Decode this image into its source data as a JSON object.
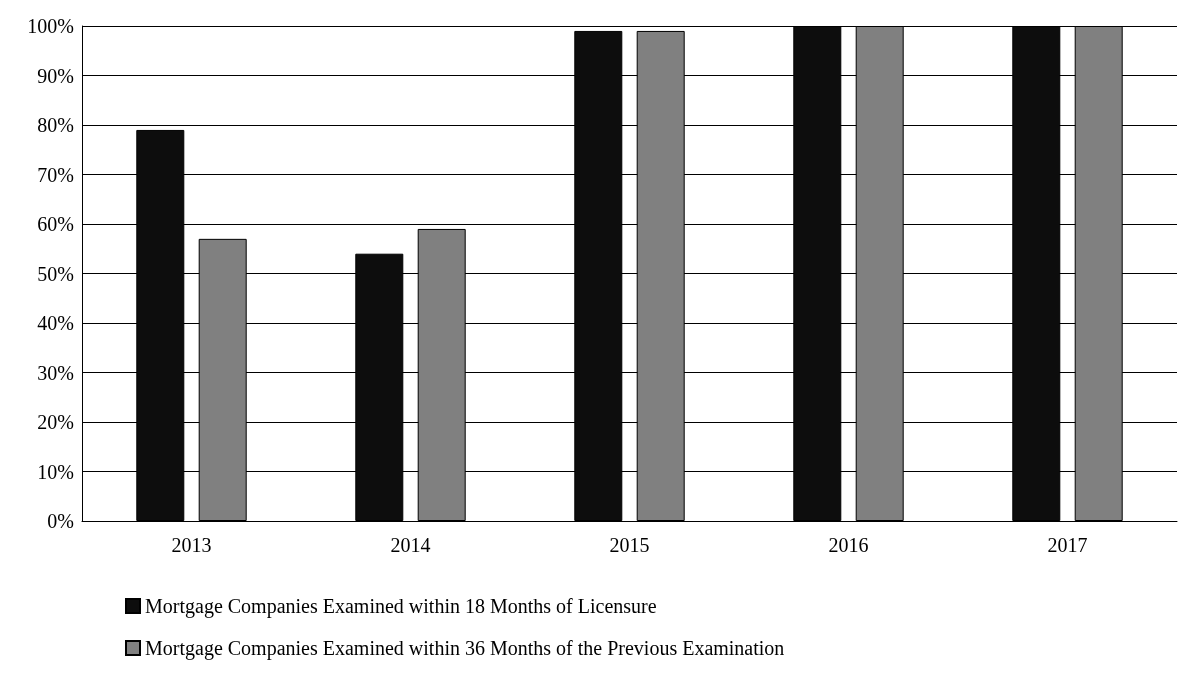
{
  "chart_data": {
    "type": "bar",
    "categories": [
      "2013",
      "2014",
      "2015",
      "2016",
      "2017"
    ],
    "series": [
      {
        "name": "Mortgage Companies Examined within 18 Months of Licensure",
        "color": "#0d0d0d",
        "values": [
          79,
          54,
          99,
          100,
          100
        ]
      },
      {
        "name": "Mortgage Companies Examined within 36 Months of the Previous Examination",
        "color": "#808080",
        "values": [
          57,
          59,
          99,
          100,
          100
        ]
      }
    ],
    "ylim": [
      0,
      100
    ],
    "yticks": [
      {
        "value": 0,
        "label": "0%"
      },
      {
        "value": 10,
        "label": "10%"
      },
      {
        "value": 20,
        "label": "20%"
      },
      {
        "value": 30,
        "label": "30%"
      },
      {
        "value": 40,
        "label": "40%"
      },
      {
        "value": 50,
        "label": "50%"
      },
      {
        "value": 60,
        "label": "60%"
      },
      {
        "value": 70,
        "label": "70%"
      },
      {
        "value": 80,
        "label": "80%"
      },
      {
        "value": 90,
        "label": "90%"
      },
      {
        "value": 100,
        "label": "100%"
      }
    ],
    "grid": "y",
    "legend": "bottom left"
  }
}
